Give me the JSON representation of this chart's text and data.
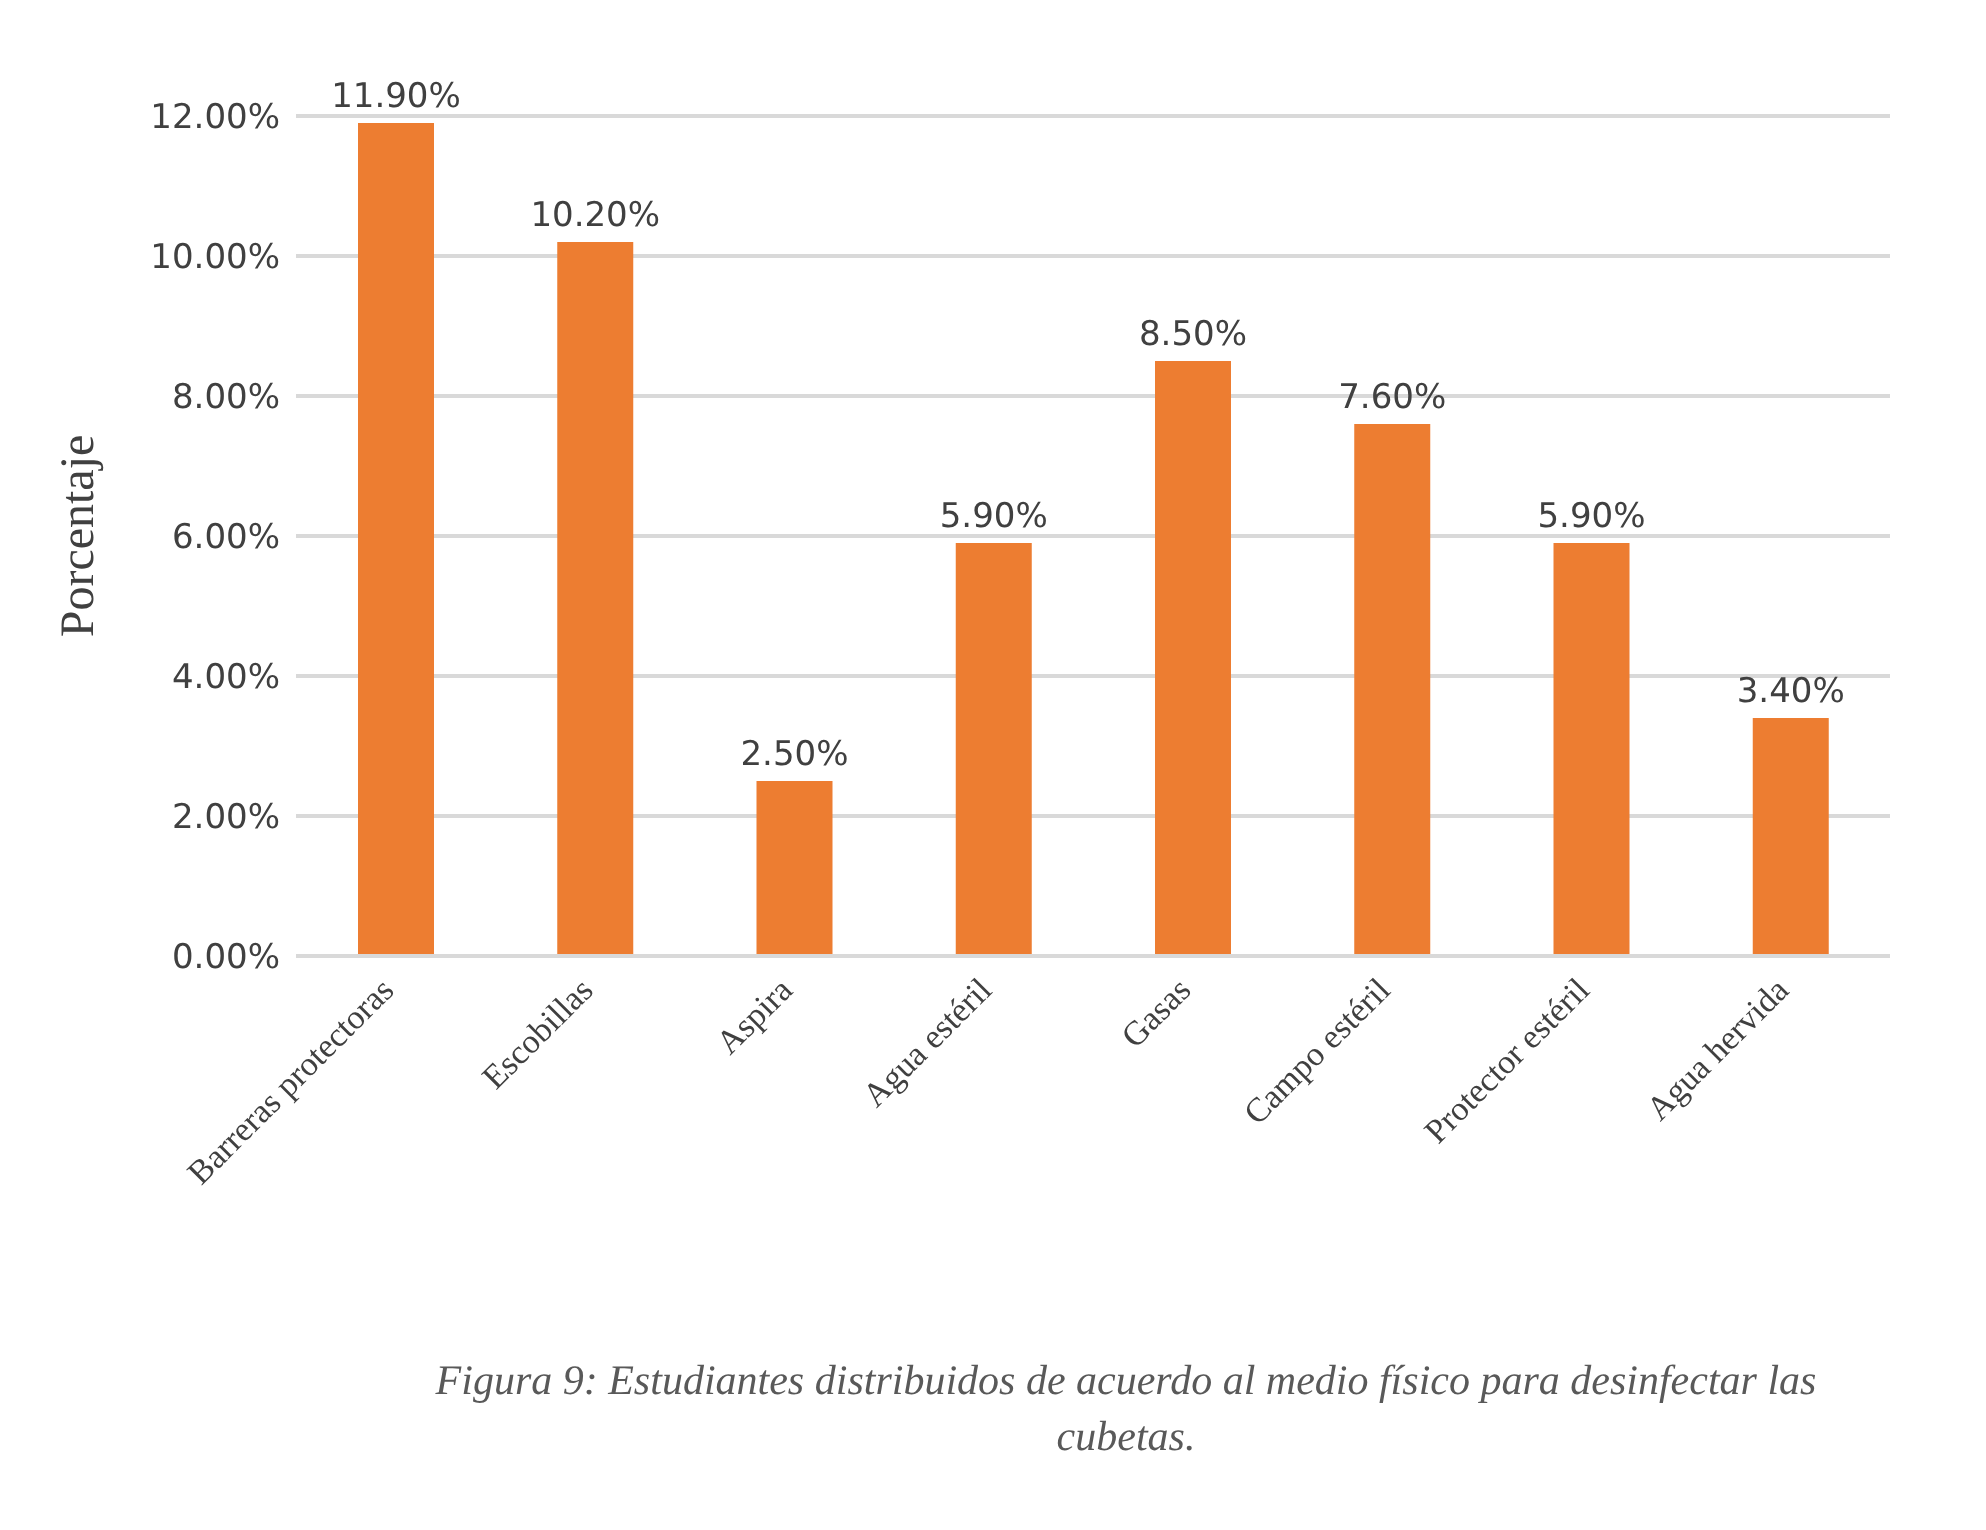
{
  "chart_data": {
    "type": "bar",
    "ylabel": "Porcentaje",
    "categories": [
      "Barreras protectoras",
      "Escobillas",
      "Aspira",
      "Agua estéril",
      "Gasas",
      "Campo estéril",
      "Protector estéril",
      "Agua hervida"
    ],
    "values": [
      11.9,
      10.2,
      2.5,
      5.9,
      8.5,
      7.6,
      5.9,
      3.4
    ],
    "value_labels": [
      "11.90%",
      "10.20%",
      "2.50%",
      "5.90%",
      "8.50%",
      "7.60%",
      "5.90%",
      "3.40%"
    ],
    "color": "#ed7d31",
    "ylim": [
      0,
      12
    ],
    "yticks": [
      {
        "value": 0,
        "label": "0.00%"
      },
      {
        "value": 2,
        "label": "2.00%"
      },
      {
        "value": 4,
        "label": "4.00%"
      },
      {
        "value": 6,
        "label": "6.00%"
      },
      {
        "value": 8,
        "label": "8.00%"
      },
      {
        "value": 10,
        "label": "10.00%"
      },
      {
        "value": 12,
        "label": "12.00%"
      }
    ],
    "grid": "y",
    "annotations": [
      "Figura 9: Estudiantes distribuidos de acuerdo al medio físico para desinfectar las cubetas."
    ]
  }
}
